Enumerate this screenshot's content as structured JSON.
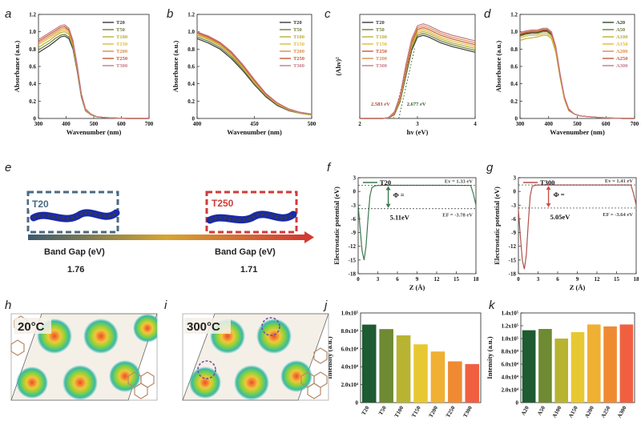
{
  "panel_letters": {
    "a": "a",
    "b": "b",
    "c": "c",
    "d": "d",
    "e": "e",
    "f": "f",
    "g": "g",
    "h": "h",
    "i": "i",
    "j": "j",
    "k": "k"
  },
  "chart_data": [
    {
      "id": "a",
      "type": "line",
      "xlabel": "Wavenumber (nm)",
      "ylabel": "Absorbance (a.u.)",
      "xlim": [
        300,
        700
      ],
      "ylim": [
        0,
        1.2
      ],
      "xticks": [
        300,
        400,
        500,
        600,
        700
      ],
      "yticks": [
        0,
        0.2,
        0.4,
        0.6,
        0.8,
        1.0,
        1.2
      ],
      "yticklabels": [
        "0",
        "0.2",
        "0.4",
        "0.6",
        "0.8",
        "1.0",
        "1.2"
      ],
      "x": [
        300,
        320,
        340,
        360,
        380,
        395,
        410,
        425,
        440,
        455,
        470,
        490,
        510,
        540,
        580,
        620,
        660,
        700
      ],
      "series": [
        {
          "name": "T20",
          "color": "#3a3a3a",
          "values": [
            0.76,
            0.8,
            0.84,
            0.89,
            0.94,
            0.95,
            0.92,
            0.8,
            0.55,
            0.25,
            0.09,
            0.04,
            0.02,
            0.01,
            0.005,
            0,
            0,
            0
          ]
        },
        {
          "name": "T50",
          "color": "#6e7d3a",
          "values": [
            0.79,
            0.83,
            0.87,
            0.92,
            0.96,
            0.97,
            0.94,
            0.82,
            0.56,
            0.26,
            0.09,
            0.04,
            0.02,
            0.01,
            0.005,
            0,
            0,
            0
          ]
        },
        {
          "name": "T100",
          "color": "#b8b037",
          "values": [
            0.82,
            0.86,
            0.9,
            0.95,
            0.99,
            1.0,
            0.97,
            0.84,
            0.58,
            0.27,
            0.1,
            0.04,
            0.02,
            0.01,
            0.005,
            0,
            0,
            0
          ]
        },
        {
          "name": "T150",
          "color": "#e0b83a",
          "values": [
            0.85,
            0.89,
            0.93,
            0.97,
            1.01,
            1.02,
            0.99,
            0.86,
            0.59,
            0.27,
            0.1,
            0.04,
            0.02,
            0.01,
            0.005,
            0,
            0,
            0
          ]
        },
        {
          "name": "T200",
          "color": "#d98f4a",
          "values": [
            0.87,
            0.91,
            0.95,
            0.99,
            1.03,
            1.04,
            1.01,
            0.87,
            0.6,
            0.28,
            0.1,
            0.05,
            0.02,
            0.01,
            0.005,
            0,
            0,
            0
          ]
        },
        {
          "name": "T250",
          "color": "#c8573a",
          "values": [
            0.89,
            0.93,
            0.97,
            1.01,
            1.05,
            1.06,
            1.02,
            0.88,
            0.61,
            0.28,
            0.11,
            0.05,
            0.02,
            0.01,
            0.005,
            0,
            0,
            0
          ]
        },
        {
          "name": "T300",
          "color": "#c47a8a",
          "values": [
            0.91,
            0.95,
            0.99,
            1.03,
            1.07,
            1.08,
            1.04,
            0.9,
            0.62,
            0.29,
            0.11,
            0.05,
            0.02,
            0.01,
            0.005,
            0,
            0,
            0
          ]
        }
      ]
    },
    {
      "id": "b",
      "type": "line",
      "xlabel": "Wavenumber (nm)",
      "ylabel": "Absorbance (a.u.)",
      "xlim": [
        400,
        500
      ],
      "ylim": [
        0,
        1.2
      ],
      "xticks": [
        400,
        450,
        500
      ],
      "yticks": [
        0,
        0.2,
        0.4,
        0.6,
        0.8,
        1.0,
        1.2
      ],
      "yticklabels": [
        "0",
        "0.2",
        "0.4",
        "0.6",
        "0.8",
        "1.0",
        "1.2"
      ],
      "x": [
        400,
        410,
        420,
        430,
        440,
        450,
        460,
        470,
        480,
        490,
        500
      ],
      "series": [
        {
          "name": "T20",
          "color": "#3a3a3a",
          "values": [
            0.92,
            0.87,
            0.8,
            0.69,
            0.55,
            0.39,
            0.25,
            0.15,
            0.09,
            0.06,
            0.04
          ]
        },
        {
          "name": "T50",
          "color": "#6e7d3a",
          "values": [
            0.94,
            0.89,
            0.82,
            0.71,
            0.57,
            0.4,
            0.26,
            0.16,
            0.09,
            0.06,
            0.04
          ]
        },
        {
          "name": "T100",
          "color": "#b8b037",
          "values": [
            0.96,
            0.91,
            0.84,
            0.73,
            0.58,
            0.41,
            0.27,
            0.16,
            0.1,
            0.06,
            0.04
          ]
        },
        {
          "name": "T150",
          "color": "#e0b83a",
          "values": [
            0.97,
            0.92,
            0.85,
            0.74,
            0.59,
            0.42,
            0.27,
            0.17,
            0.1,
            0.07,
            0.05
          ]
        },
        {
          "name": "T200",
          "color": "#d98f4a",
          "values": [
            0.98,
            0.93,
            0.86,
            0.75,
            0.6,
            0.43,
            0.28,
            0.17,
            0.1,
            0.07,
            0.05
          ]
        },
        {
          "name": "T250",
          "color": "#c8573a",
          "values": [
            0.99,
            0.94,
            0.87,
            0.76,
            0.61,
            0.44,
            0.28,
            0.18,
            0.11,
            0.07,
            0.05
          ]
        },
        {
          "name": "T300",
          "color": "#c47a8a",
          "values": [
            1.0,
            0.95,
            0.88,
            0.77,
            0.62,
            0.45,
            0.29,
            0.18,
            0.11,
            0.07,
            0.05
          ]
        }
      ]
    },
    {
      "id": "c",
      "type": "line",
      "xlabel": "hv (eV)",
      "ylabel": "(Ahv)²",
      "xlim": [
        2,
        4
      ],
      "ylim": [
        0,
        1.1
      ],
      "xticks": [
        2,
        3,
        4
      ],
      "x": [
        2.0,
        2.2,
        2.4,
        2.5,
        2.6,
        2.7,
        2.8,
        2.9,
        3.0,
        3.1,
        3.2,
        3.4,
        3.6,
        3.8,
        4.0
      ],
      "series": [
        {
          "name": "T20",
          "color": "#3a3a3a",
          "values": [
            0,
            0,
            0,
            0.005,
            0.04,
            0.18,
            0.45,
            0.72,
            0.86,
            0.88,
            0.86,
            0.8,
            0.76,
            0.73,
            0.7
          ]
        },
        {
          "name": "T50",
          "color": "#6e7d3a",
          "values": [
            0,
            0,
            0,
            0.006,
            0.045,
            0.19,
            0.47,
            0.74,
            0.88,
            0.9,
            0.88,
            0.82,
            0.78,
            0.75,
            0.72
          ]
        },
        {
          "name": "T100",
          "color": "#b8b037",
          "values": [
            0,
            0,
            0,
            0.007,
            0.05,
            0.2,
            0.49,
            0.76,
            0.9,
            0.92,
            0.9,
            0.84,
            0.8,
            0.77,
            0.74
          ]
        },
        {
          "name": "T150",
          "color": "#e0b83a",
          "values": [
            0,
            0,
            0,
            0.008,
            0.055,
            0.21,
            0.51,
            0.78,
            0.92,
            0.94,
            0.92,
            0.86,
            0.82,
            0.79,
            0.76
          ]
        },
        {
          "name": "T250",
          "color": "#c8573a",
          "values": [
            0,
            0,
            0,
            0.009,
            0.06,
            0.22,
            0.53,
            0.8,
            0.94,
            0.96,
            0.94,
            0.88,
            0.84,
            0.81,
            0.78
          ]
        },
        {
          "name": "T200",
          "color": "#d98f4a",
          "values": [
            0,
            0,
            0,
            0.01,
            0.065,
            0.23,
            0.55,
            0.82,
            0.96,
            0.98,
            0.96,
            0.9,
            0.86,
            0.83,
            0.8
          ]
        },
        {
          "name": "T300",
          "color": "#c47a8a",
          "values": [
            0,
            0,
            0,
            0.011,
            0.07,
            0.24,
            0.57,
            0.84,
            0.98,
            1.0,
            0.98,
            0.92,
            0.88,
            0.85,
            0.82
          ]
        }
      ],
      "tangents": [
        {
          "from": [
            2.583,
            0
          ],
          "to": [
            2.9,
            0.74
          ],
          "color": "#c8573a"
        },
        {
          "from": [
            2.677,
            0
          ],
          "to": [
            2.95,
            0.74
          ],
          "color": "#3a6e3a"
        }
      ],
      "annotations": [
        {
          "text": "2.583 eV",
          "x": 2.583,
          "color": "#a6493a"
        },
        {
          "text": "2.677 eV",
          "x": 2.677,
          "color": "#2f5a2f"
        }
      ]
    },
    {
      "id": "d",
      "type": "line",
      "xlabel": "Wavenumber (nm)",
      "ylabel": "Absorbance (a.u.)",
      "xlim": [
        300,
        700
      ],
      "ylim": [
        0,
        1.2
      ],
      "xticks": [
        300,
        400,
        500,
        600,
        700
      ],
      "yticks": [
        0,
        0.2,
        0.4,
        0.6,
        0.8,
        1.0,
        1.2
      ],
      "yticklabels": [
        "0",
        "0.2",
        "0.4",
        "0.6",
        "0.8",
        "1.0",
        "1.2"
      ],
      "x": [
        300,
        320,
        340,
        360,
        380,
        395,
        410,
        425,
        440,
        455,
        470,
        490,
        510,
        540,
        580,
        620,
        660,
        700
      ],
      "series": [
        {
          "name": "A20",
          "color": "#2e4a2e",
          "values": [
            0.96,
            0.98,
            0.99,
            0.99,
            1.01,
            1.01,
            0.97,
            0.8,
            0.5,
            0.24,
            0.1,
            0.05,
            0.03,
            0.02,
            0.01,
            0.005,
            0,
            0
          ]
        },
        {
          "name": "A50",
          "color": "#6e7d3a",
          "values": [
            0.95,
            0.97,
            0.98,
            0.98,
            1.0,
            1.0,
            0.96,
            0.79,
            0.49,
            0.23,
            0.1,
            0.05,
            0.03,
            0.02,
            0.01,
            0.005,
            0,
            0
          ]
        },
        {
          "name": "A100",
          "color": "#b8b037",
          "values": [
            0.9,
            0.92,
            0.93,
            0.94,
            0.96,
            0.96,
            0.92,
            0.76,
            0.47,
            0.22,
            0.09,
            0.05,
            0.03,
            0.02,
            0.01,
            0.005,
            0,
            0
          ]
        },
        {
          "name": "A150",
          "color": "#e0b83a",
          "values": [
            0.93,
            0.95,
            0.96,
            0.96,
            0.98,
            0.98,
            0.94,
            0.78,
            0.48,
            0.23,
            0.1,
            0.05,
            0.03,
            0.02,
            0.01,
            0.005,
            0,
            0
          ]
        },
        {
          "name": "A200",
          "color": "#d98f4a",
          "values": [
            0.98,
            1.0,
            1.01,
            1.01,
            1.03,
            1.03,
            0.99,
            0.82,
            0.51,
            0.25,
            0.11,
            0.05,
            0.03,
            0.02,
            0.01,
            0.005,
            0,
            0
          ]
        },
        {
          "name": "A250",
          "color": "#c8573a",
          "values": [
            0.97,
            0.99,
            1.0,
            1.0,
            1.02,
            1.02,
            0.98,
            0.81,
            0.5,
            0.24,
            0.1,
            0.05,
            0.03,
            0.02,
            0.01,
            0.005,
            0,
            0
          ]
        },
        {
          "name": "A300",
          "color": "#c47a8a",
          "values": [
            0.99,
            1.01,
            1.02,
            1.02,
            1.04,
            1.04,
            1.0,
            0.83,
            0.52,
            0.25,
            0.11,
            0.05,
            0.03,
            0.02,
            0.01,
            0.005,
            0,
            0
          ]
        }
      ]
    },
    {
      "id": "f",
      "type": "line",
      "xlabel": "Z (Å)",
      "ylabel": "Electrostatic potential (eV)",
      "xlim": [
        0,
        18
      ],
      "ylim": [
        -18,
        3
      ],
      "xticks": [
        0,
        3,
        6,
        9,
        12,
        15,
        18
      ],
      "yticks": [
        3,
        0,
        -3,
        -6,
        -9,
        -12,
        -15,
        -18
      ],
      "legend": "T20",
      "series": [
        {
          "name": "T20",
          "color": "#3d7a4e",
          "x": [
            0,
            0.3,
            0.6,
            0.9,
            1.2,
            1.5,
            1.8,
            2.1,
            2.5,
            3,
            5,
            9,
            13,
            17.2,
            17.6,
            18
          ],
          "values": [
            -3,
            -8,
            -13,
            -15,
            -12,
            -6,
            -1,
            0.8,
            1.2,
            1.3,
            1.33,
            1.33,
            1.33,
            1.3,
            -0.5,
            -3
          ]
        }
      ],
      "vacuum_level": 1.33,
      "fermi_level": -3.78,
      "vacuum_label": "Ev = 1.33 eV",
      "fermi_label": "EF = -3.78 eV",
      "phi_label": "Φ =",
      "phi_value": "5.11eV"
    },
    {
      "id": "g",
      "type": "line",
      "xlabel": "Z (Å)",
      "ylabel": "Electrostatic potential (eV)",
      "xlim": [
        0,
        18
      ],
      "ylim": [
        -18,
        3
      ],
      "xticks": [
        0,
        3,
        6,
        9,
        12,
        15,
        18
      ],
      "yticks": [
        3,
        0,
        -3,
        -6,
        -9,
        -12,
        -15,
        -18
      ],
      "legend": "T300",
      "series": [
        {
          "name": "T300",
          "color": "#b0504a",
          "x": [
            0,
            0.3,
            0.6,
            0.9,
            1.2,
            1.5,
            1.8,
            2.1,
            2.5,
            3,
            5,
            9,
            13,
            17.2,
            17.6,
            18
          ],
          "values": [
            -4,
            -10,
            -15,
            -17,
            -14,
            -7,
            -1,
            1.0,
            1.35,
            1.4,
            1.41,
            1.41,
            1.41,
            1.4,
            -0.5,
            -3
          ]
        }
      ],
      "vacuum_level": 1.41,
      "fermi_level": -3.64,
      "vacuum_label": "Ev = 1.41 eV",
      "fermi_label": "EF = -3.64 eV",
      "phi_label": "Φ =",
      "phi_value": "5.05eV"
    },
    {
      "id": "j",
      "type": "bar",
      "ylabel": "Intensity (a.u.)",
      "categories": [
        "T20",
        "T50",
        "T100",
        "T150",
        "T200",
        "T250",
        "T300"
      ],
      "values": [
        87000,
        82000,
        75000,
        65000,
        57000,
        46000,
        43000
      ],
      "colors": [
        "#1e5a32",
        "#6e8a32",
        "#b8b432",
        "#e8c832",
        "#f0b034",
        "#f08a32",
        "#f06040"
      ],
      "ylim": [
        0,
        100000
      ],
      "yticks": [
        0,
        20000,
        40000,
        60000,
        80000
      ],
      "yticklabels": [
        "0",
        "2.0x10⁴",
        "4.0x10⁴",
        "6.0x10⁴",
        "8.0x10⁴"
      ],
      "top_label": "1.0x10⁵"
    },
    {
      "id": "k",
      "type": "bar",
      "ylabel": "Intensity (a.u.)",
      "categories": [
        "A20",
        "A50",
        "A100",
        "A150",
        "A200",
        "A250",
        "A300"
      ],
      "values": [
        113000,
        115000,
        100000,
        110000,
        122000,
        119000,
        122000
      ],
      "colors": [
        "#1e5a32",
        "#6e8a32",
        "#b8b432",
        "#e8c832",
        "#f0b034",
        "#f08a32",
        "#f06040"
      ],
      "ylim": [
        0,
        140000
      ],
      "yticks": [
        0,
        20000,
        40000,
        60000,
        80000,
        100000,
        120000,
        140000
      ],
      "yticklabels": [
        "0",
        "2.0x10⁴",
        "4.0x10⁴",
        "6.0x10⁴",
        "8.0x10⁴",
        "1.0x10⁵",
        "1.2x10⁵",
        "1.4x10⁵"
      ]
    }
  ],
  "panel_e": {
    "left_label": "T20",
    "right_label": "T250",
    "band_gap_caption_left": "Band Gap (eV)",
    "band_gap_caption_right": "Band Gap (eV)",
    "band_gap_left": "1.76",
    "band_gap_right": "1.71"
  },
  "panel_h": {
    "label": "20°C"
  },
  "panel_i": {
    "label": "300°C"
  }
}
